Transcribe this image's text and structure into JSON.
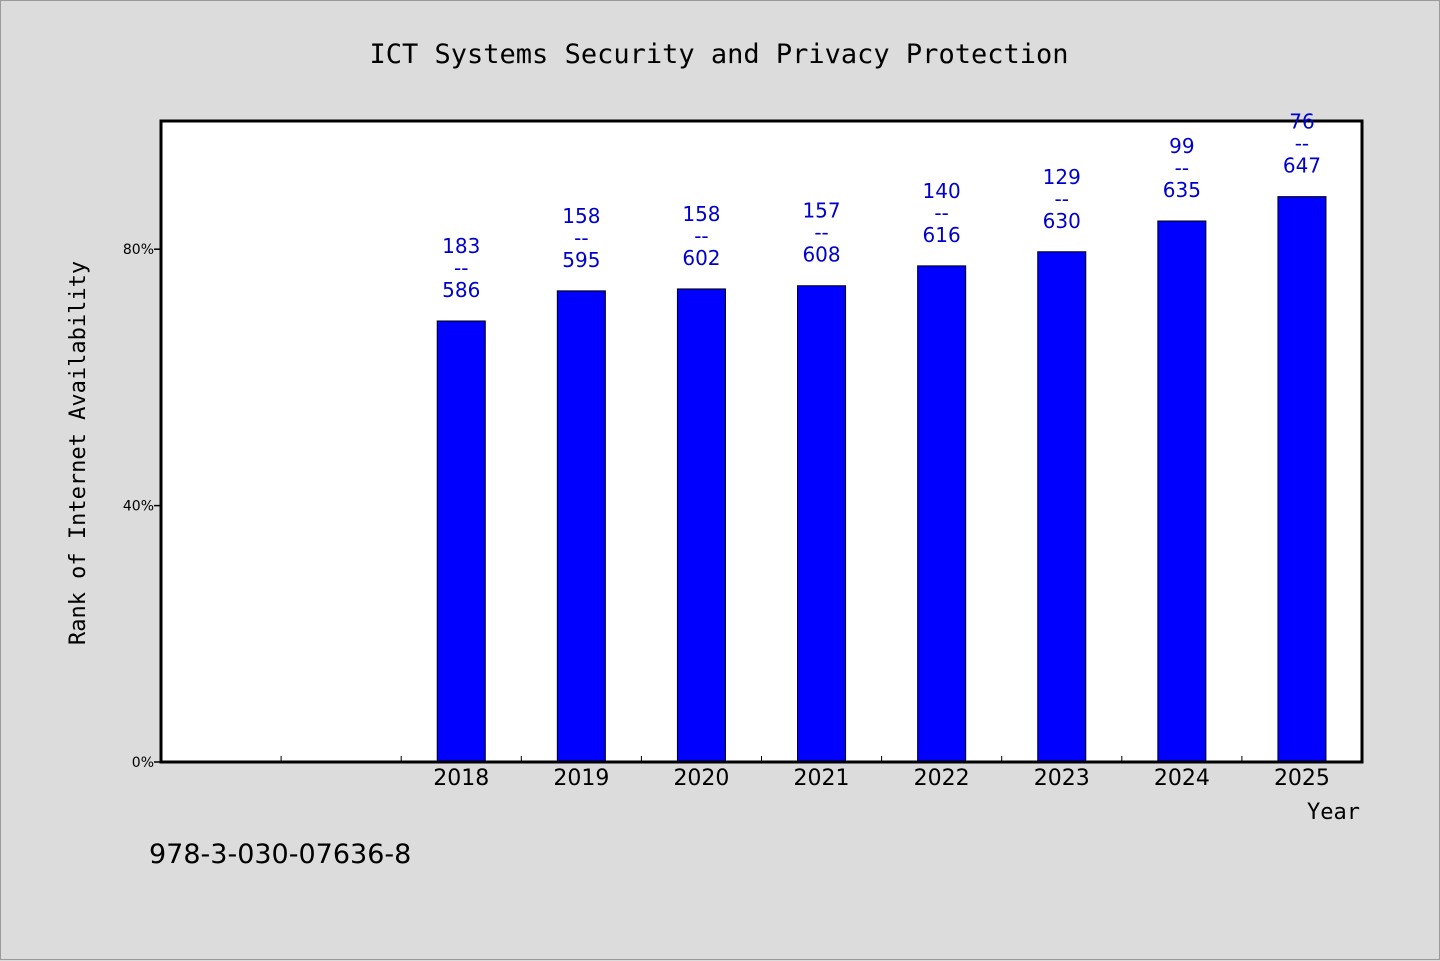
{
  "chart_data": {
    "type": "bar",
    "title": "ICT Systems Security and Privacy Protection",
    "xlabel": "Year",
    "ylabel": "Rank of Internet Availability",
    "categories": [
      "2018",
      "2019",
      "2020",
      "2021",
      "2022",
      "2023",
      "2024",
      "2025"
    ],
    "values": [
      68.8,
      73.5,
      73.8,
      74.3,
      77.4,
      79.6,
      84.4,
      88.2
    ],
    "data_labels": [
      [
        "183",
        "--",
        "586"
      ],
      [
        "158",
        "--",
        "595"
      ],
      [
        "158",
        "--",
        "602"
      ],
      [
        "157",
        "--",
        "608"
      ],
      [
        "140",
        "--",
        "616"
      ],
      [
        "129",
        "--",
        "630"
      ],
      [
        "99",
        "--",
        "635"
      ],
      [
        "76",
        "--",
        "647"
      ]
    ],
    "yticks": [
      0,
      40,
      80
    ],
    "ytick_labels": [
      "0%",
      "40%",
      "80%"
    ],
    "ylim": [
      0,
      100
    ],
    "x_slots": 10,
    "first_category_slot": 2,
    "grid": false,
    "bar_color": "#0000ff",
    "label_color": "#0000cc"
  },
  "footer": {
    "isbn": "978-3-030-07636-8"
  }
}
